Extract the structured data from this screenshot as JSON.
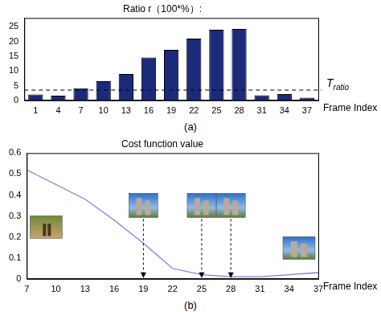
{
  "chart_data": [
    {
      "type": "bar",
      "title": "Ratio r（100*%）:",
      "label": "(a)",
      "x_label": "Frame Index",
      "categories": [
        "1",
        "4",
        "7",
        "10",
        "13",
        "16",
        "19",
        "22",
        "25",
        "28",
        "31",
        "34",
        "37"
      ],
      "values": [
        2.0,
        1.6,
        4.1,
        6.5,
        9.0,
        14.6,
        17.2,
        21.0,
        24.0,
        24.3,
        1.7,
        2.1,
        0.9
      ],
      "color": "#1c2a7c",
      "ylim": [
        0,
        28
      ],
      "yticks": [
        0,
        5,
        10,
        15,
        20,
        25
      ],
      "grid": false,
      "threshold": {
        "value": 3.5,
        "label": "T",
        "subscript": "ratio"
      }
    },
    {
      "type": "line",
      "title": "Cost function value",
      "label": "(b)",
      "x_label": "Frame Index",
      "x": [
        7,
        10,
        13,
        16,
        19,
        22,
        25,
        28,
        31,
        34,
        37
      ],
      "values": [
        0.52,
        0.45,
        0.38,
        0.28,
        0.17,
        0.05,
        0.02,
        0.01,
        0.01,
        0.02,
        0.03
      ],
      "color": "#7f7fe0",
      "marker": "none",
      "xlim": [
        7,
        37
      ],
      "xticks": [
        7,
        10,
        13,
        16,
        19,
        22,
        25,
        28,
        31,
        34,
        37
      ],
      "ylim": [
        0,
        0.6
      ],
      "yticks": [
        0,
        0.1,
        0.2,
        0.3,
        0.4,
        0.5,
        0.6
      ],
      "grid": false,
      "arrows": [
        19,
        25,
        28
      ]
    }
  ]
}
